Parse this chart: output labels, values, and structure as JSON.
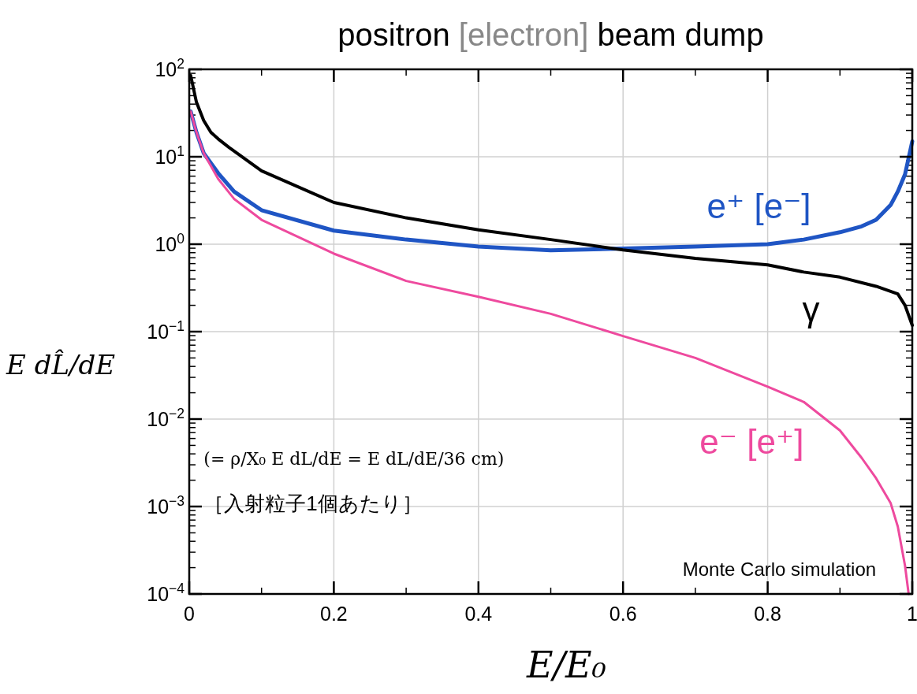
{
  "chart_data": {
    "type": "line",
    "title": "positron [electron] beam dump",
    "xlabel": "E/E₀",
    "ylabel": "E dL̂/dE",
    "annotations": [
      "(= ρ/X₀ E dL/dE = E dL/dE/36 cm)",
      "［入射粒子1個あたり］",
      "Monte Carlo simulation"
    ],
    "xlim": [
      0,
      1
    ],
    "ylim": [
      0.0001,
      100
    ],
    "log": "y",
    "grid": true,
    "xticks": [
      0,
      0.2,
      0.4,
      0.6,
      0.8,
      1
    ],
    "yticks": [
      {
        "value": 100,
        "label": "10$^{2}$"
      },
      {
        "value": 10,
        "label": "10$^{1}$"
      },
      {
        "value": 1,
        "label": "10$^{0}$"
      },
      {
        "value": 0.1,
        "label": "10$^{−1}$"
      },
      {
        "value": 0.01,
        "label": "10$^{−2}$"
      },
      {
        "value": 0.001,
        "label": "10$^{−3}$"
      },
      {
        "value": 0.0001,
        "label": "10$^{−4}$"
      }
    ],
    "series": [
      {
        "name": "e⁺ [e⁻]",
        "color": "#1f55c4",
        "x": [
          0.002,
          0.01,
          0.02,
          0.04,
          0.062,
          0.1,
          0.2,
          0.3,
          0.4,
          0.5,
          0.6,
          0.7,
          0.8,
          0.85,
          0.9,
          0.93,
          0.95,
          0.97,
          0.98,
          0.99,
          1.0
        ],
        "values": [
          33,
          19,
          11,
          6.5,
          4.0,
          2.45,
          1.43,
          1.13,
          0.94,
          0.85,
          0.89,
          0.94,
          1.0,
          1.13,
          1.37,
          1.6,
          1.9,
          2.8,
          4.0,
          6.3,
          15
        ]
      },
      {
        "name": "γ",
        "color": "#000000",
        "x": [
          0.002,
          0.01,
          0.02,
          0.03,
          0.04,
          0.055,
          0.1,
          0.2,
          0.3,
          0.4,
          0.5,
          0.6,
          0.7,
          0.8,
          0.85,
          0.9,
          0.95,
          0.98,
          0.99,
          1.0
        ],
        "values": [
          85,
          42,
          26,
          19,
          16,
          12.8,
          6.9,
          3.0,
          2.0,
          1.46,
          1.13,
          0.86,
          0.69,
          0.58,
          0.48,
          0.42,
          0.33,
          0.27,
          0.2,
          0.118
        ]
      },
      {
        "name": "e⁻ [e⁺]",
        "color": "#ee4a9e",
        "x": [
          0.002,
          0.01,
          0.02,
          0.04,
          0.062,
          0.1,
          0.2,
          0.3,
          0.4,
          0.5,
          0.6,
          0.7,
          0.8,
          0.85,
          0.9,
          0.93,
          0.95,
          0.97,
          0.98,
          0.99,
          0.995
        ],
        "values": [
          33,
          19,
          11,
          5.6,
          3.3,
          1.9,
          0.78,
          0.38,
          0.25,
          0.16,
          0.089,
          0.05,
          0.0235,
          0.0157,
          0.0074,
          0.0036,
          0.0021,
          0.0011,
          0.00059,
          0.00021,
          0.0001
        ]
      }
    ]
  }
}
